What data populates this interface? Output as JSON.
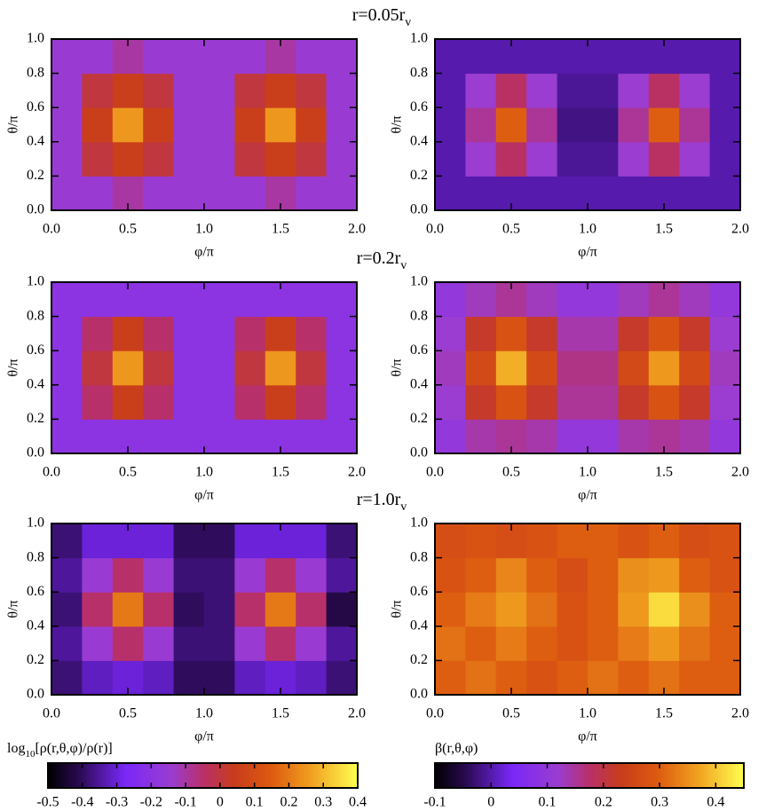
{
  "chart_data": [
    {
      "type": "heatmap",
      "title": "r=0.05r",
      "title_subscript": "v",
      "xlabel": "φ/π",
      "ylabel": "θ/π",
      "xlim": [
        0,
        2
      ],
      "ylim": [
        0,
        1
      ],
      "zlim": [
        -0.5,
        0.4
      ],
      "xticks": [
        {
          "value": 0,
          "label": "0.0"
        },
        0.5,
        {
          "value": 1,
          "label": "1.0"
        },
        1.5,
        {
          "value": 2,
          "label": "2.0"
        }
      ],
      "yticks": [
        {
          "value": 0,
          "label": "0.0"
        },
        0.2,
        0.4,
        0.6,
        0.8,
        {
          "value": 1,
          "label": "1.0"
        }
      ],
      "values": [
        [
          -0.15,
          -0.15,
          -0.1,
          -0.15,
          -0.15,
          -0.15,
          -0.15,
          -0.1,
          -0.15,
          -0.15
        ],
        [
          -0.15,
          0.0,
          0.05,
          0.0,
          -0.15,
          -0.15,
          0.0,
          0.05,
          0.0,
          -0.15
        ],
        [
          -0.15,
          0.05,
          0.25,
          0.05,
          -0.15,
          -0.15,
          0.05,
          0.25,
          0.05,
          -0.15
        ],
        [
          -0.15,
          0.0,
          0.05,
          0.0,
          -0.15,
          -0.15,
          0.0,
          0.05,
          0.0,
          -0.15
        ],
        [
          -0.15,
          -0.15,
          -0.1,
          -0.15,
          -0.15,
          -0.15,
          -0.15,
          -0.1,
          -0.15,
          -0.15
        ]
      ]
    },
    {
      "type": "heatmap",
      "xlabel": "φ/π",
      "ylabel": "θ/π",
      "xlim": [
        0,
        2
      ],
      "ylim": [
        0,
        1
      ],
      "zlim": [
        -0.1,
        0.45
      ],
      "xticks": [
        {
          "value": 0,
          "label": "0.0"
        },
        0.5,
        {
          "value": 1,
          "label": "1.0"
        },
        1.5,
        {
          "value": 2,
          "label": "2.0"
        }
      ],
      "yticks": [
        {
          "value": 0,
          "label": "0.0"
        },
        0.2,
        0.4,
        0.6,
        0.8,
        {
          "value": 1,
          "label": "1.0"
        }
      ],
      "values": [
        [
          0,
          0,
          0,
          0,
          0,
          0,
          0,
          0,
          0,
          0
        ],
        [
          0,
          0.12,
          0.18,
          0.12,
          -0.01,
          -0.01,
          0.12,
          0.18,
          0.12,
          0
        ],
        [
          0,
          0.15,
          0.3,
          0.15,
          -0.02,
          -0.02,
          0.15,
          0.3,
          0.15,
          0
        ],
        [
          0,
          0.12,
          0.18,
          0.12,
          -0.01,
          -0.01,
          0.12,
          0.18,
          0.12,
          0
        ],
        [
          0,
          0,
          0,
          0,
          0,
          0,
          0,
          0,
          0,
          0
        ]
      ]
    },
    {
      "type": "heatmap",
      "title": "r=0.2r",
      "title_subscript": "v",
      "xlabel": "φ/π",
      "ylabel": "θ/π",
      "xlim": [
        0,
        2
      ],
      "ylim": [
        0,
        1
      ],
      "zlim": [
        -0.5,
        0.4
      ],
      "xticks": [
        {
          "value": 0,
          "label": "0.0"
        },
        0.5,
        {
          "value": 1,
          "label": "1.0"
        },
        1.5,
        {
          "value": 2,
          "label": "2.0"
        }
      ],
      "yticks": [
        {
          "value": 0,
          "label": "0.0"
        },
        0.2,
        0.4,
        0.6,
        0.8,
        {
          "value": 1,
          "label": "1.0"
        }
      ],
      "values": [
        [
          -0.2,
          -0.2,
          -0.2,
          -0.2,
          -0.2,
          -0.2,
          -0.2,
          -0.2,
          -0.2,
          -0.2
        ],
        [
          -0.2,
          -0.05,
          0.05,
          -0.05,
          -0.2,
          -0.2,
          -0.05,
          0.05,
          -0.05,
          -0.2
        ],
        [
          -0.2,
          0.0,
          0.25,
          0.0,
          -0.2,
          -0.2,
          0.0,
          0.25,
          0.0,
          -0.2
        ],
        [
          -0.2,
          -0.05,
          0.05,
          -0.05,
          -0.2,
          -0.2,
          -0.05,
          0.05,
          -0.05,
          -0.2
        ],
        [
          -0.2,
          -0.2,
          -0.2,
          -0.2,
          -0.2,
          -0.2,
          -0.2,
          -0.2,
          -0.2,
          -0.2
        ]
      ]
    },
    {
      "type": "heatmap",
      "xlabel": "φ/π",
      "ylabel": "θ/π",
      "xlim": [
        0,
        2
      ],
      "ylim": [
        0,
        1
      ],
      "zlim": [
        -0.1,
        0.45
      ],
      "xticks": [
        {
          "value": 0,
          "label": "0.0"
        },
        0.5,
        {
          "value": 1,
          "label": "1.0"
        },
        1.5,
        {
          "value": 2,
          "label": "2.0"
        }
      ],
      "yticks": [
        {
          "value": 0,
          "label": "0.0"
        },
        0.2,
        0.4,
        0.6,
        0.8,
        {
          "value": 1,
          "label": "1.0"
        }
      ],
      "values": [
        [
          0.1,
          0.14,
          0.15,
          0.14,
          0.1,
          0.1,
          0.14,
          0.15,
          0.14,
          0.1
        ],
        [
          0.12,
          0.22,
          0.28,
          0.22,
          0.15,
          0.15,
          0.22,
          0.28,
          0.22,
          0.12
        ],
        [
          0.13,
          0.26,
          0.38,
          0.26,
          0.16,
          0.16,
          0.26,
          0.36,
          0.26,
          0.13
        ],
        [
          0.12,
          0.22,
          0.28,
          0.22,
          0.14,
          0.14,
          0.22,
          0.28,
          0.22,
          0.12
        ],
        [
          0.1,
          0.13,
          0.15,
          0.13,
          0.1,
          0.1,
          0.13,
          0.15,
          0.13,
          0.1
        ]
      ]
    },
    {
      "type": "heatmap",
      "title": "r=1.0r",
      "title_subscript": "v",
      "xlabel": "φ/π",
      "ylabel": "θ/π",
      "xlim": [
        0,
        2
      ],
      "ylim": [
        0,
        1
      ],
      "zlim": [
        -0.5,
        0.4
      ],
      "xticks": [
        {
          "value": 0,
          "label": "0.0"
        },
        0.5,
        {
          "value": 1,
          "label": "1.0"
        },
        1.5,
        {
          "value": 2,
          "label": "2.0"
        }
      ],
      "yticks": [
        {
          "value": 0,
          "label": "0.0"
        },
        0.2,
        0.4,
        0.6,
        0.8,
        {
          "value": 1,
          "label": "1.0"
        }
      ],
      "values": [
        [
          -0.38,
          -0.32,
          -0.3,
          -0.32,
          -0.4,
          -0.4,
          -0.32,
          -0.3,
          -0.32,
          -0.38
        ],
        [
          -0.35,
          -0.15,
          -0.05,
          -0.15,
          -0.38,
          -0.38,
          -0.15,
          -0.05,
          -0.15,
          -0.35
        ],
        [
          -0.38,
          -0.05,
          0.2,
          -0.05,
          -0.4,
          -0.38,
          -0.05,
          0.2,
          -0.05,
          -0.42
        ],
        [
          -0.35,
          -0.15,
          -0.05,
          -0.15,
          -0.38,
          -0.38,
          -0.15,
          -0.05,
          -0.15,
          -0.35
        ],
        [
          -0.38,
          -0.3,
          -0.3,
          -0.3,
          -0.4,
          -0.4,
          -0.3,
          -0.3,
          -0.3,
          -0.38
        ]
      ]
    },
    {
      "type": "heatmap",
      "xlabel": "φ/π",
      "ylabel": "θ/π",
      "xlim": [
        0,
        2
      ],
      "ylim": [
        0,
        1
      ],
      "zlim": [
        -0.1,
        0.45
      ],
      "xticks": [
        {
          "value": 0,
          "label": "0.0"
        },
        0.5,
        {
          "value": 1,
          "label": "1.0"
        },
        1.5,
        {
          "value": 2,
          "label": "2.0"
        }
      ],
      "yticks": [
        {
          "value": 0,
          "label": "0.0"
        },
        0.2,
        0.4,
        0.6,
        0.8,
        {
          "value": 1,
          "label": "1.0"
        }
      ],
      "values": [
        [
          0.3,
          0.32,
          0.3,
          0.28,
          0.3,
          0.32,
          0.3,
          0.32,
          0.3,
          0.3
        ],
        [
          0.32,
          0.3,
          0.33,
          0.3,
          0.28,
          0.3,
          0.33,
          0.36,
          0.32,
          0.3
        ],
        [
          0.3,
          0.33,
          0.36,
          0.32,
          0.28,
          0.3,
          0.36,
          0.42,
          0.35,
          0.3
        ],
        [
          0.28,
          0.3,
          0.34,
          0.3,
          0.27,
          0.3,
          0.35,
          0.36,
          0.3,
          0.28
        ],
        [
          0.27,
          0.28,
          0.27,
          0.28,
          0.3,
          0.3,
          0.28,
          0.3,
          0.27,
          0.28
        ]
      ]
    },
    {
      "type": "colorbar",
      "label": "log",
      "label_subscript": "10",
      "label_rest": "[ρ(r,θ,φ)/ρ(r)]",
      "zlim": [
        -0.5,
        0.4
      ],
      "ticks": [
        -0.5,
        -0.4,
        -0.3,
        -0.2,
        -0.1,
        0,
        0.1,
        0.2,
        0.3,
        0.4
      ]
    },
    {
      "type": "colorbar",
      "label": "β(r,θ,φ)",
      "zlim": [
        -0.1,
        0.45
      ],
      "ticks": [
        -0.1,
        0,
        0.1,
        0.2,
        0.3,
        0.4
      ]
    }
  ]
}
